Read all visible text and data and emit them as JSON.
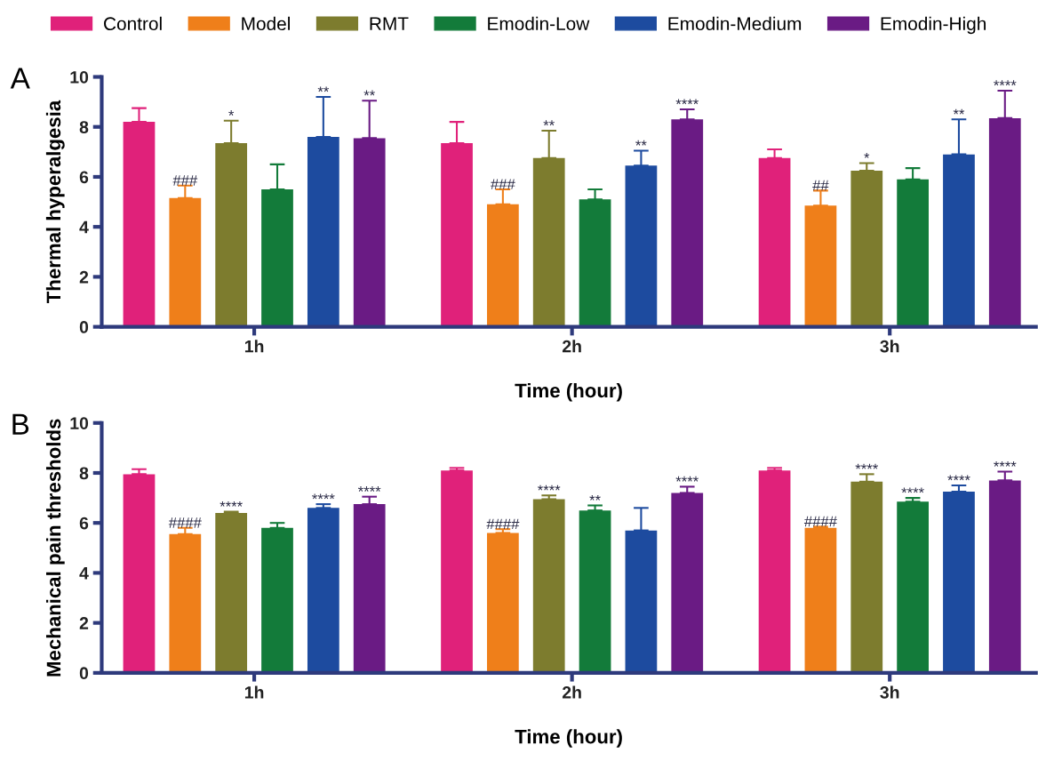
{
  "chart_data": [
    {
      "type": "bar",
      "ylabel": "Thermal hyperalgesia",
      "xlabel": "Time (hour)",
      "annotations": [
        "A"
      ],
      "categories": [
        "1h",
        "2h",
        "3h"
      ],
      "ylim": [
        0,
        10
      ],
      "yticks": [
        0,
        2,
        4,
        6,
        8,
        10
      ],
      "grid": false,
      "legend": "top",
      "series": [
        {
          "name": "Control",
          "color": "#e0217a",
          "values": [
            8.2,
            7.35,
            6.75
          ],
          "errors": [
            [
              8.2,
              8.75
            ],
            [
              7.35,
              8.2
            ],
            [
              6.75,
              7.1
            ]
          ],
          "value_labels": [
            null,
            null,
            null
          ]
        },
        {
          "name": "Model",
          "color": "#ef7f1a",
          "values": [
            5.15,
            4.9,
            4.85
          ],
          "errors": [
            [
              5.15,
              5.65
            ],
            [
              4.9,
              5.5
            ],
            [
              4.85,
              5.45
            ]
          ],
          "value_labels": [
            "###",
            "###",
            "##"
          ]
        },
        {
          "name": "RMT",
          "color": "#7d7c2e",
          "values": [
            7.35,
            6.75,
            6.25
          ],
          "errors": [
            [
              7.35,
              8.25
            ],
            [
              6.75,
              7.85
            ],
            [
              6.25,
              6.55
            ]
          ],
          "value_labels": [
            "*",
            "**",
            "*"
          ]
        },
        {
          "name": "Emodin-Low",
          "color": "#137b3a",
          "values": [
            5.5,
            5.1,
            5.9
          ],
          "errors": [
            [
              5.5,
              6.5
            ],
            [
              5.1,
              5.5
            ],
            [
              5.9,
              6.35
            ]
          ],
          "value_labels": [
            null,
            null,
            null
          ]
        },
        {
          "name": "Emodin-Medium",
          "color": "#1d4b9f",
          "values": [
            7.6,
            6.45,
            6.9
          ],
          "errors": [
            [
              7.6,
              9.2
            ],
            [
              6.45,
              7.05
            ],
            [
              6.9,
              8.3
            ]
          ],
          "value_labels": [
            "**",
            "**",
            "**"
          ]
        },
        {
          "name": "Emodin-High",
          "color": "#6a1b84",
          "values": [
            7.55,
            8.3,
            8.35
          ],
          "errors": [
            [
              7.55,
              9.05
            ],
            [
              8.3,
              8.7
            ],
            [
              8.35,
              9.45
            ]
          ],
          "value_labels": [
            "**",
            "****",
            "****"
          ]
        }
      ]
    },
    {
      "type": "bar",
      "ylabel": "Mechanical pain thresholds",
      "xlabel": "Time (hour)",
      "annotations": [
        "B"
      ],
      "categories": [
        "1h",
        "2h",
        "3h"
      ],
      "ylim": [
        0,
        10
      ],
      "yticks": [
        0,
        2,
        4,
        6,
        8,
        10
      ],
      "grid": false,
      "series": [
        {
          "color": "#e0217a",
          "values": [
            7.95,
            8.1,
            8.1
          ],
          "errors": [
            [
              7.95,
              8.15
            ],
            [
              8.1,
              8.2
            ],
            [
              8.1,
              8.2
            ]
          ],
          "value_labels": [
            null,
            null,
            null
          ]
        },
        {
          "color": "#ef7f1a",
          "values": [
            5.55,
            5.6,
            5.8
          ],
          "errors": [
            [
              5.55,
              5.8
            ],
            [
              5.6,
              5.75
            ],
            [
              5.8,
              5.85
            ]
          ],
          "value_labels": [
            "####",
            "####",
            "####"
          ]
        },
        {
          "color": "#7d7c2e",
          "values": [
            6.4,
            6.95,
            7.65
          ],
          "errors": [
            [
              6.4,
              6.45
            ],
            [
              6.95,
              7.1
            ],
            [
              7.65,
              7.95
            ]
          ],
          "value_labels": [
            "****",
            "****",
            "****"
          ]
        },
        {
          "color": "#137b3a",
          "values": [
            5.8,
            6.5,
            6.85
          ],
          "errors": [
            [
              5.8,
              6.0
            ],
            [
              6.5,
              6.7
            ],
            [
              6.85,
              7.0
            ]
          ],
          "value_labels": [
            null,
            "**",
            "****"
          ]
        },
        {
          "color": "#1d4b9f",
          "values": [
            6.6,
            5.7,
            7.25
          ],
          "errors": [
            [
              6.6,
              6.75
            ],
            [
              5.7,
              6.6
            ],
            [
              7.25,
              7.5
            ]
          ],
          "value_labels": [
            "****",
            null,
            "****"
          ]
        },
        {
          "color": "#6a1b84",
          "values": [
            6.75,
            7.2,
            7.7
          ],
          "errors": [
            [
              6.75,
              7.05
            ],
            [
              7.2,
              7.45
            ],
            [
              7.7,
              8.05
            ]
          ],
          "value_labels": [
            "****",
            "****",
            "****"
          ]
        }
      ]
    }
  ]
}
